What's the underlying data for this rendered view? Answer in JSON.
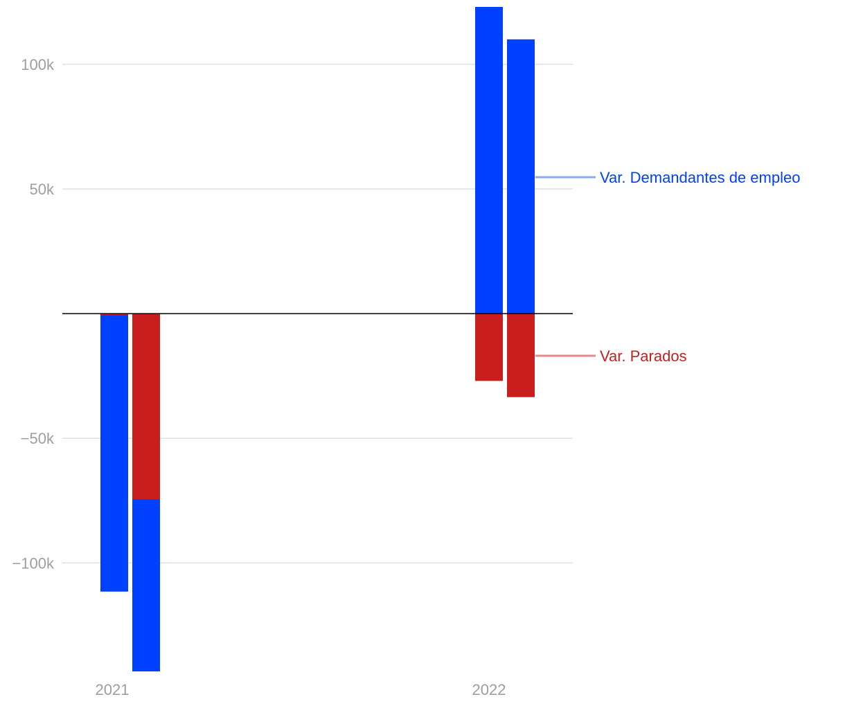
{
  "chart_data": {
    "type": "bar",
    "categories": [
      "2021",
      "2022"
    ],
    "ylim": [
      -143500,
      123000
    ],
    "yticks": [
      100000,
      50000,
      -50000,
      -100000
    ],
    "ytick_labels": [
      "100k",
      "50k",
      "−50k",
      "−100k"
    ],
    "grid": true,
    "legend_placement": "right",
    "colors": {
      "demandantes": "#0040ff",
      "parados": "#c81e1e",
      "grid": "#e0e0e0",
      "zero_line": "#000000",
      "legend_line_demandantes": "#8aa8f5",
      "legend_line_parados": "#e08a8a"
    },
    "series": [
      {
        "name": "Var. Demandantes de empleo",
        "color": "#0040ff",
        "values": [
          [
            -111500,
            -143500
          ],
          [
            123000,
            110000
          ]
        ]
      },
      {
        "name": "Var. Parados",
        "color": "#c81e1e",
        "values": [
          [
            -700,
            -74500
          ],
          [
            -27000,
            -33500
          ]
        ]
      }
    ]
  }
}
